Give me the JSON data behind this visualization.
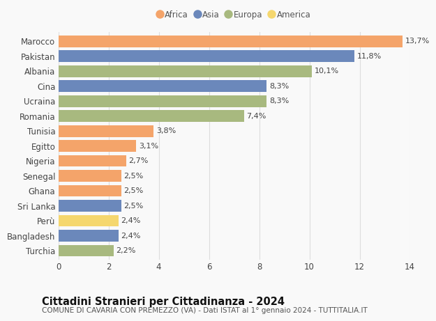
{
  "categories": [
    "Marocco",
    "Pakistan",
    "Albania",
    "Cina",
    "Ucraina",
    "Romania",
    "Tunisia",
    "Egitto",
    "Nigeria",
    "Senegal",
    "Ghana",
    "Sri Lanka",
    "Perù",
    "Bangladesh",
    "Turchia"
  ],
  "values": [
    13.7,
    11.8,
    10.1,
    8.3,
    8.3,
    7.4,
    3.8,
    3.1,
    2.7,
    2.5,
    2.5,
    2.5,
    2.4,
    2.4,
    2.2
  ],
  "labels": [
    "13,7%",
    "11,8%",
    "10,1%",
    "8,3%",
    "8,3%",
    "7,4%",
    "3,8%",
    "3,1%",
    "2,7%",
    "2,5%",
    "2,5%",
    "2,5%",
    "2,4%",
    "2,4%",
    "2,2%"
  ],
  "continents": [
    "Africa",
    "Asia",
    "Europa",
    "Asia",
    "Europa",
    "Europa",
    "Africa",
    "Africa",
    "Africa",
    "Africa",
    "Africa",
    "Asia",
    "America",
    "Asia",
    "Europa"
  ],
  "colors": {
    "Africa": "#F4A46A",
    "Asia": "#6B88BB",
    "Europa": "#A8B97F",
    "America": "#F5D76E"
  },
  "legend_order": [
    "Africa",
    "Asia",
    "Europa",
    "America"
  ],
  "title": "Cittadini Stranieri per Cittadinanza - 2024",
  "subtitle": "COMUNE DI CAVARIA CON PREMEZZO (VA) - Dati ISTAT al 1° gennaio 2024 - TUTTITALIA.IT",
  "xlim": [
    0,
    14
  ],
  "xticks": [
    0,
    2,
    4,
    6,
    8,
    10,
    12,
    14
  ],
  "background_color": "#f9f9f9",
  "grid_color": "#dddddd",
  "bar_height": 0.78,
  "title_fontsize": 10.5,
  "subtitle_fontsize": 7.5,
  "tick_fontsize": 8.5,
  "label_fontsize": 8.0,
  "legend_fontsize": 8.5
}
